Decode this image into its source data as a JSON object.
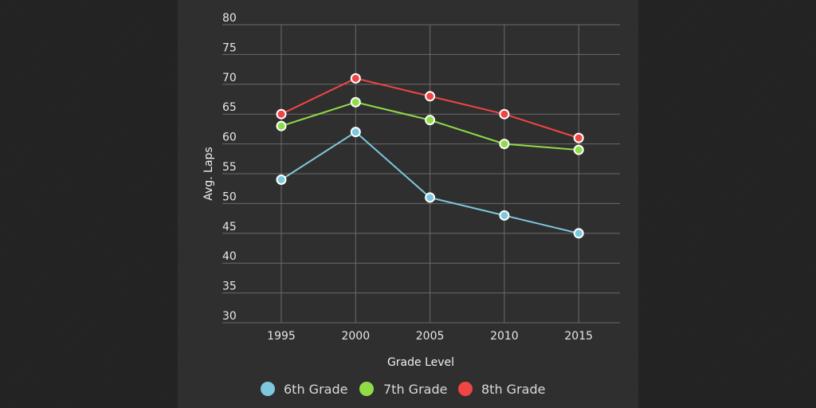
{
  "chart_data": {
    "type": "line",
    "x": [
      "1995",
      "2000",
      "2005",
      "2010",
      "2015"
    ],
    "series": [
      {
        "name": "6th Grade",
        "color": "#7ec8de",
        "values": [
          54,
          62,
          51,
          48,
          45
        ]
      },
      {
        "name": "7th Grade",
        "color": "#8fdc48",
        "values": [
          63,
          67,
          64,
          60,
          59
        ]
      },
      {
        "name": "8th Grade",
        "color": "#f04545",
        "values": [
          65,
          71,
          68,
          65,
          61
        ]
      }
    ],
    "xlabel": "Grade Level",
    "ylabel": "Avg. Laps",
    "ylim": [
      30,
      80
    ],
    "yticks": [
      30,
      35,
      40,
      45,
      50,
      55,
      60,
      65,
      70,
      75,
      80
    ],
    "grid": true,
    "legend_position": "bottom"
  }
}
